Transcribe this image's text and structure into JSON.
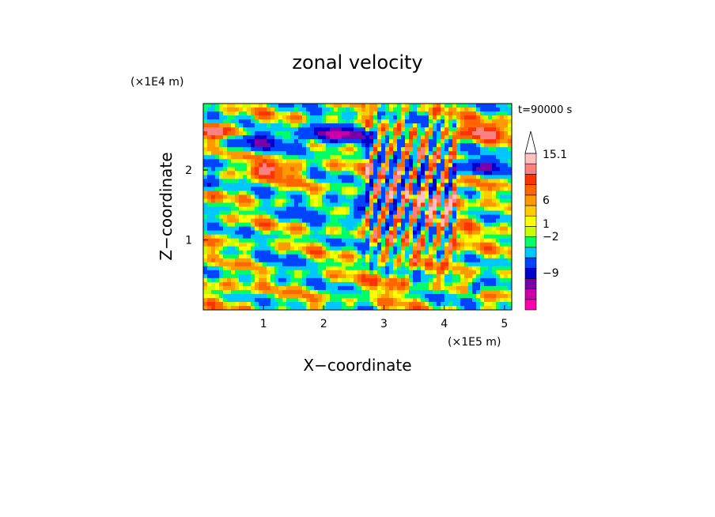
{
  "chart_data": {
    "type": "heatmap",
    "title": "zonal velocity",
    "xlabel": "X−coordinate",
    "ylabel": "Z−coordinate",
    "x_unit": "(×1E5 m)",
    "y_unit": "(×1E4 m)",
    "time_label": "t=90000 s",
    "xlim": [
      0,
      5.12
    ],
    "ylim": [
      0,
      2.95
    ],
    "x_ticks": [
      1,
      2,
      3,
      4,
      5
    ],
    "y_ticks": [
      1,
      2
    ],
    "colorbar": {
      "levels_labeled": [
        "15.1",
        "6",
        "1",
        "−2",
        "−9"
      ],
      "colors": [
        "#ff00b0",
        "#cc00aa",
        "#7a00a8",
        "#0000cc",
        "#0044ff",
        "#00c8ff",
        "#00ff66",
        "#c8ff00",
        "#ffff00",
        "#ffcc00",
        "#ff9900",
        "#ff6600",
        "#ff3300",
        "#ff8080",
        "#ffc0c0"
      ],
      "extend": "max"
    }
  }
}
